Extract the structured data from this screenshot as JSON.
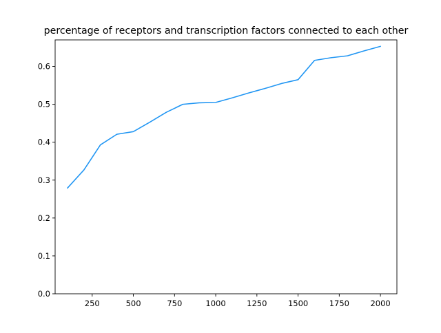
{
  "chart_data": {
    "type": "line",
    "title": "percentage of receptors and transcription factors connected to each other",
    "xlabel": "",
    "ylabel": "",
    "xlim": [
      25,
      2100
    ],
    "ylim": [
      0.0,
      0.67
    ],
    "grid": false,
    "xticks": [
      250,
      500,
      750,
      1000,
      1250,
      1500,
      1750,
      2000
    ],
    "xtick_labels": [
      "250",
      "500",
      "750",
      "1000",
      "1250",
      "1500",
      "1750",
      "2000"
    ],
    "yticks": [
      0.0,
      0.1,
      0.2,
      0.3,
      0.4,
      0.5,
      0.6
    ],
    "ytick_labels": [
      "0.0",
      "0.1",
      "0.2",
      "0.3",
      "0.4",
      "0.5",
      "0.6"
    ],
    "series": [
      {
        "color": "#2196f3",
        "x": [
          100,
          200,
          300,
          400,
          500,
          600,
          700,
          800,
          900,
          1000,
          1100,
          1200,
          1300,
          1400,
          1500,
          1600,
          1700,
          1800,
          1900,
          2000
        ],
        "y": [
          0.279,
          0.327,
          0.393,
          0.421,
          0.428,
          0.453,
          0.479,
          0.5,
          0.504,
          0.505,
          0.517,
          0.53,
          0.542,
          0.555,
          0.565,
          0.616,
          0.623,
          0.628,
          0.641,
          0.653
        ]
      }
    ]
  }
}
